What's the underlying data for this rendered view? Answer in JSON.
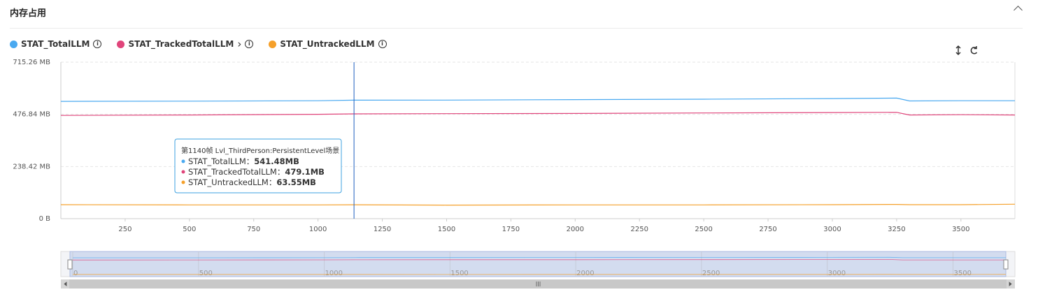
{
  "panel_title": "内存占用",
  "chart_data": {
    "type": "line",
    "x": [
      0,
      500,
      1000,
      1140,
      1500,
      2000,
      2500,
      3000,
      3250,
      3300,
      3500,
      3710
    ],
    "series": [
      {
        "name": "STAT_TotalLLM",
        "color": "#4aa9f0",
        "values": [
          536,
          537,
          539,
          541.48,
          542,
          544,
          546,
          549,
          551,
          538,
          539,
          539
        ]
      },
      {
        "name": "STAT_TrackedTotalLLM",
        "color": "#e0457b",
        "values": [
          472,
          474,
          477,
          479.1,
          480,
          481,
          483,
          485,
          486,
          474,
          475,
          474
        ]
      },
      {
        "name": "STAT_UntrackedLLM",
        "color": "#f5a02a",
        "values": [
          64,
          63,
          63,
          63.55,
          62,
          63,
          63,
          64,
          65,
          64,
          64,
          66
        ]
      }
    ],
    "xlim": [
      0,
      3710
    ],
    "xticks": [
      250,
      500,
      750,
      1000,
      1250,
      1500,
      1750,
      2000,
      2250,
      2500,
      2750,
      3000,
      3250,
      3500
    ],
    "ylim": [
      0,
      715.26
    ],
    "yticks": [
      {
        "value": 0,
        "label": "0 B"
      },
      {
        "value": 238.42,
        "label": "238.42 MB"
      },
      {
        "value": 476.84,
        "label": "476.84 MB"
      },
      {
        "value": 715.26,
        "label": "715.26 MB"
      }
    ],
    "grid": true,
    "tooltip": {
      "title": "第1140帧 Lvl_ThirdPerson:PersistentLevel场景",
      "x": 1140,
      "separator": "：",
      "value_labels": [
        "541.48MB",
        "479.1MB",
        "63.55MB"
      ]
    },
    "zoom_xticks": [
      0,
      500,
      1000,
      1500,
      2000,
      2500,
      3000,
      3500
    ]
  }
}
